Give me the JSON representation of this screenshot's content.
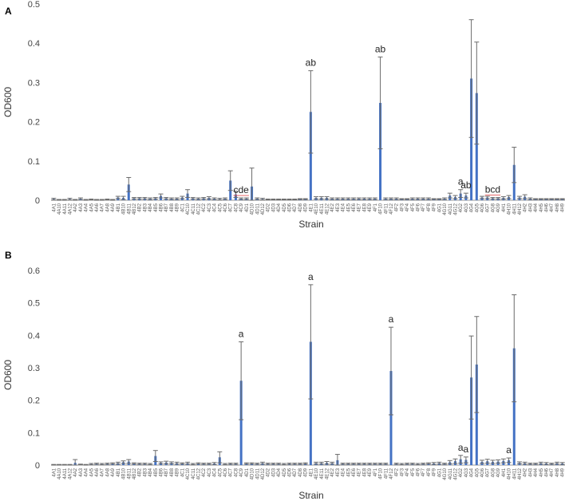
{
  "colors": {
    "bar": "#4472C4",
    "error": "#6b6b6b",
    "axis": "#9a9a9a",
    "sig_underline": "#e05050"
  },
  "chart_data": [
    {
      "panel": "A",
      "type": "bar",
      "xlabel": "Strain",
      "ylabel": "OD600",
      "ylim": [
        0,
        0.5
      ],
      "yticks": [
        "0",
        "0.1",
        "0.2",
        "0.3",
        "0.4",
        "0.5"
      ],
      "categories": [
        "4A1",
        "4A10",
        "4A11",
        "4A12",
        "4A2",
        "4A3",
        "4A4",
        "4A5",
        "4A6",
        "4A7",
        "4A8",
        "4A9",
        "4B1",
        "4B10",
        "4B11",
        "4B12",
        "4B2",
        "4B3",
        "4B4",
        "4B5",
        "4B6",
        "4B7",
        "4B8",
        "4B9",
        "4C1",
        "4C10",
        "4C11",
        "4C12",
        "4C2",
        "4C3",
        "4C4",
        "4C5",
        "4C6",
        "4C7",
        "4C8",
        "4C9",
        "4D1",
        "4D10",
        "4D11",
        "4D12",
        "4D2",
        "4D3",
        "4D4",
        "4D5",
        "4D6",
        "4D7",
        "4D8",
        "4D9",
        "4E1",
        "4E10",
        "4E11",
        "4E12",
        "4E2",
        "4E3",
        "4E4",
        "4E5",
        "4E6",
        "4E7",
        "4E8",
        "4E9",
        "4F1",
        "4F10",
        "4F11",
        "4F12",
        "4F2",
        "4F3",
        "4F4",
        "4F5",
        "4F6",
        "4F7",
        "4F8",
        "4F9",
        "4G1",
        "4G10",
        "4G11",
        "4G12",
        "4G2",
        "4G3",
        "4G4",
        "4G5",
        "4G6",
        "4G7",
        "4G8",
        "4G9",
        "4H1",
        "4H10",
        "4H11",
        "4H12",
        "4H2",
        "4H3",
        "4H4",
        "4H5",
        "4H6",
        "4H7",
        "4H8",
        "4H9"
      ],
      "values": [
        0.003,
        0.001,
        0.001,
        0.003,
        0.001,
        0.004,
        0.001,
        0.002,
        0.001,
        0.001,
        0.002,
        0.001,
        0.007,
        0.006,
        0.04,
        0.005,
        0.005,
        0.005,
        0.004,
        0.005,
        0.011,
        0.005,
        0.004,
        0.004,
        0.007,
        0.017,
        0.005,
        0.004,
        0.005,
        0.006,
        0.004,
        0.003,
        0.004,
        0.05,
        0.015,
        0.004,
        0.004,
        0.035,
        0.004,
        0.003,
        0.002,
        0.002,
        0.002,
        0.002,
        0.002,
        0.002,
        0.003,
        0.003,
        0.225,
        0.006,
        0.006,
        0.006,
        0.004,
        0.004,
        0.004,
        0.004,
        0.004,
        0.004,
        0.004,
        0.004,
        0.004,
        0.248,
        0.004,
        0.004,
        0.004,
        0.003,
        0.003,
        0.004,
        0.004,
        0.004,
        0.004,
        0.003,
        0.003,
        0.004,
        0.012,
        0.008,
        0.017,
        0.012,
        0.31,
        0.273,
        0.007,
        0.007,
        0.005,
        0.005,
        0.006,
        0.008,
        0.09,
        0.007,
        0.009,
        0.004,
        0.003,
        0.003,
        0.003,
        0.003,
        0.003,
        0.003
      ],
      "errors": [
        0.002,
        0.001,
        0.001,
        0.002,
        0.001,
        0.002,
        0.001,
        0.001,
        0.001,
        0.001,
        0.001,
        0.001,
        0.003,
        0.004,
        0.018,
        0.002,
        0.002,
        0.002,
        0.002,
        0.002,
        0.005,
        0.002,
        0.002,
        0.002,
        0.003,
        0.01,
        0.002,
        0.002,
        0.002,
        0.003,
        0.002,
        0.002,
        0.002,
        0.025,
        0.008,
        0.002,
        0.002,
        0.047,
        0.002,
        0.002,
        0.001,
        0.001,
        0.001,
        0.001,
        0.001,
        0.001,
        0.001,
        0.001,
        0.105,
        0.003,
        0.003,
        0.003,
        0.002,
        0.002,
        0.002,
        0.002,
        0.002,
        0.002,
        0.002,
        0.002,
        0.002,
        0.117,
        0.002,
        0.002,
        0.002,
        0.001,
        0.001,
        0.002,
        0.002,
        0.002,
        0.002,
        0.001,
        0.001,
        0.002,
        0.006,
        0.004,
        0.01,
        0.006,
        0.15,
        0.13,
        0.003,
        0.003,
        0.002,
        0.002,
        0.003,
        0.004,
        0.045,
        0.003,
        0.005,
        0.002,
        0.001,
        0.001,
        0.001,
        0.001,
        0.001,
        0.001
      ],
      "annotations": [
        {
          "category": "4C9",
          "label": "cde"
        },
        {
          "category": "4E1",
          "label": "ab"
        },
        {
          "category": "4F10",
          "label": "ab"
        },
        {
          "category": "4G2",
          "label": "a"
        },
        {
          "category": "4G3",
          "label": "ab"
        },
        {
          "category": "4G8",
          "label": "bcd"
        }
      ]
    },
    {
      "panel": "B",
      "type": "bar",
      "xlabel": "Strain",
      "ylabel": "OD600",
      "ylim": [
        0,
        0.6
      ],
      "yticks": [
        "0",
        "0.1",
        "0.2",
        "0.3",
        "0.4",
        "0.5",
        "0.6"
      ],
      "categories": [
        "4A1",
        "4A10",
        "4A11",
        "4A12",
        "4A2",
        "4A3",
        "4A4",
        "4A5",
        "4A6",
        "4A7",
        "4A8",
        "4A9",
        "4B1",
        "4B10",
        "4B11",
        "4B12",
        "4B2",
        "4B3",
        "4B4",
        "4B5",
        "4B6",
        "4B7",
        "4B8",
        "4B9",
        "4C1",
        "4C10",
        "4C11",
        "4C12",
        "4C2",
        "4C3",
        "4C4",
        "4C5",
        "4C6",
        "4C7",
        "4C8",
        "4C9",
        "4D1",
        "4D10",
        "4D11",
        "4D12",
        "4D2",
        "4D3",
        "4D4",
        "4D5",
        "4D6",
        "4D7",
        "4D8",
        "4D9",
        "4E1",
        "4E10",
        "4E11",
        "4E12",
        "4E2",
        "4E3",
        "4E4",
        "4E5",
        "4E6",
        "4E7",
        "4E8",
        "4E9",
        "4F1",
        "4F10",
        "4F11",
        "4F12",
        "4F2",
        "4F3",
        "4F4",
        "4F5",
        "4F6",
        "4F7",
        "4F8",
        "4F9",
        "4G1",
        "4G10",
        "4G11",
        "4G12",
        "4G2",
        "4G3",
        "4G4",
        "4G5",
        "4G6",
        "4G7",
        "4G8",
        "4G9",
        "4H1",
        "4H10",
        "4H11",
        "4H12",
        "4H2",
        "4H3",
        "4H4",
        "4H5",
        "4H6",
        "4H7",
        "4H8",
        "4H9"
      ],
      "values": [
        0.001,
        0.001,
        0.001,
        0.001,
        0.007,
        0.002,
        0.001,
        0.003,
        0.004,
        0.003,
        0.004,
        0.005,
        0.006,
        0.009,
        0.011,
        0.005,
        0.004,
        0.004,
        0.003,
        0.028,
        0.007,
        0.008,
        0.007,
        0.006,
        0.005,
        0.006,
        0.003,
        0.005,
        0.004,
        0.004,
        0.005,
        0.024,
        0.003,
        0.004,
        0.004,
        0.26,
        0.005,
        0.005,
        0.004,
        0.006,
        0.004,
        0.004,
        0.004,
        0.003,
        0.004,
        0.004,
        0.004,
        0.005,
        0.38,
        0.006,
        0.006,
        0.007,
        0.006,
        0.015,
        0.004,
        0.004,
        0.004,
        0.004,
        0.004,
        0.004,
        0.004,
        0.004,
        0.004,
        0.29,
        0.004,
        0.003,
        0.004,
        0.004,
        0.003,
        0.004,
        0.005,
        0.005,
        0.006,
        0.004,
        0.009,
        0.012,
        0.018,
        0.016,
        0.27,
        0.31,
        0.01,
        0.012,
        0.01,
        0.011,
        0.013,
        0.015,
        0.36,
        0.007,
        0.006,
        0.004,
        0.004,
        0.006,
        0.005,
        0.004,
        0.006,
        0.005
      ],
      "errors": [
        0.001,
        0.001,
        0.001,
        0.001,
        0.01,
        0.001,
        0.001,
        0.002,
        0.002,
        0.002,
        0.002,
        0.002,
        0.003,
        0.004,
        0.006,
        0.002,
        0.002,
        0.002,
        0.002,
        0.017,
        0.003,
        0.004,
        0.003,
        0.003,
        0.002,
        0.003,
        0.002,
        0.002,
        0.002,
        0.002,
        0.003,
        0.017,
        0.002,
        0.002,
        0.002,
        0.12,
        0.002,
        0.002,
        0.002,
        0.003,
        0.002,
        0.002,
        0.002,
        0.002,
        0.002,
        0.002,
        0.002,
        0.002,
        0.176,
        0.003,
        0.003,
        0.004,
        0.003,
        0.018,
        0.002,
        0.002,
        0.002,
        0.002,
        0.002,
        0.002,
        0.002,
        0.002,
        0.002,
        0.135,
        0.002,
        0.002,
        0.002,
        0.002,
        0.002,
        0.002,
        0.002,
        0.003,
        0.003,
        0.002,
        0.005,
        0.007,
        0.012,
        0.009,
        0.128,
        0.148,
        0.005,
        0.006,
        0.005,
        0.005,
        0.006,
        0.007,
        0.165,
        0.003,
        0.003,
        0.002,
        0.002,
        0.003,
        0.003,
        0.002,
        0.003,
        0.003
      ],
      "annotations": [
        {
          "category": "4C9",
          "label": "a"
        },
        {
          "category": "4E1",
          "label": "a"
        },
        {
          "category": "4F12",
          "label": "a"
        },
        {
          "category": "4G2",
          "label": "a"
        },
        {
          "category": "4G3",
          "label": "a"
        },
        {
          "category": "4H10",
          "label": "a"
        }
      ]
    }
  ]
}
